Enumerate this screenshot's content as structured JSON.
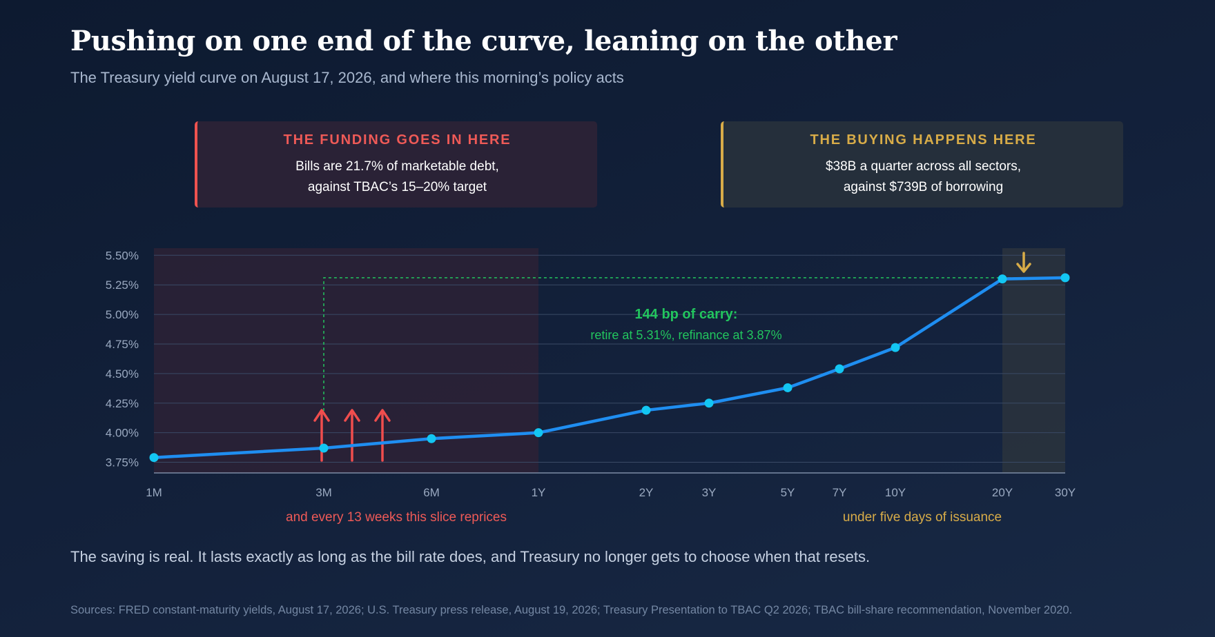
{
  "title": "Pushing on one end of the curve, leaning on the other",
  "subtitle": "The Treasury yield curve on August 17, 2026, and where this morning’s policy acts",
  "callouts": {
    "funding": {
      "heading": "THE FUNDING GOES IN HERE",
      "line1": "Bills are 21.7% of marketable debt,",
      "line2": "against TBAC’s 15–20% target",
      "color": "#ef5a57"
    },
    "buying": {
      "heading": "THE BUYING HAPPENS HERE",
      "line1": "$38B a quarter across all sectors,",
      "line2": "against $739B of borrowing",
      "color": "#d8ac48"
    }
  },
  "chart_data": {
    "type": "line",
    "title": "",
    "xlabel": "",
    "ylabel": "",
    "x": [
      "1M",
      "3M",
      "6M",
      "1Y",
      "2Y",
      "3Y",
      "5Y",
      "7Y",
      "10Y",
      "20Y",
      "30Y"
    ],
    "series": [
      {
        "values": [
          3.79,
          3.87,
          3.95,
          4.0,
          4.19,
          4.25,
          4.38,
          4.54,
          4.72,
          5.3,
          5.31
        ],
        "color": "#1f8ef1"
      }
    ],
    "yticks": [
      "3.75%",
      "4.00%",
      "4.25%",
      "4.50%",
      "4.75%",
      "5.00%",
      "5.25%",
      "5.50%"
    ],
    "ylim": [
      3.66,
      5.56
    ],
    "grid": true,
    "shaded_regions": [
      {
        "from": "1M",
        "to": "1Y",
        "color": "#2a2236"
      },
      {
        "from": "20Y",
        "to": "30Y",
        "color": "#28313d"
      }
    ],
    "carry_annotation": {
      "heading": "144 bp of carry:",
      "detail": "retire at 5.31%, refinance at 3.87%",
      "color": "#22c55e",
      "from": "3M",
      "level": 5.31
    },
    "bill_note": {
      "text": "and every 13 weeks this slice reprices",
      "color": "#ef5a57"
    },
    "bond_note": {
      "text": "under five days of issuance",
      "color": "#d8ac48"
    }
  },
  "closing_text": "The saving is real. It lasts exactly as long as the bill rate does, and Treasury no longer gets to choose when that resets.",
  "sources": "Sources: FRED constant-maturity yields, August 17, 2026; U.S. Treasury press release, August 19, 2026; Treasury Presentation to TBAC Q2 2026; TBAC bill-share recommendation, November 2020."
}
